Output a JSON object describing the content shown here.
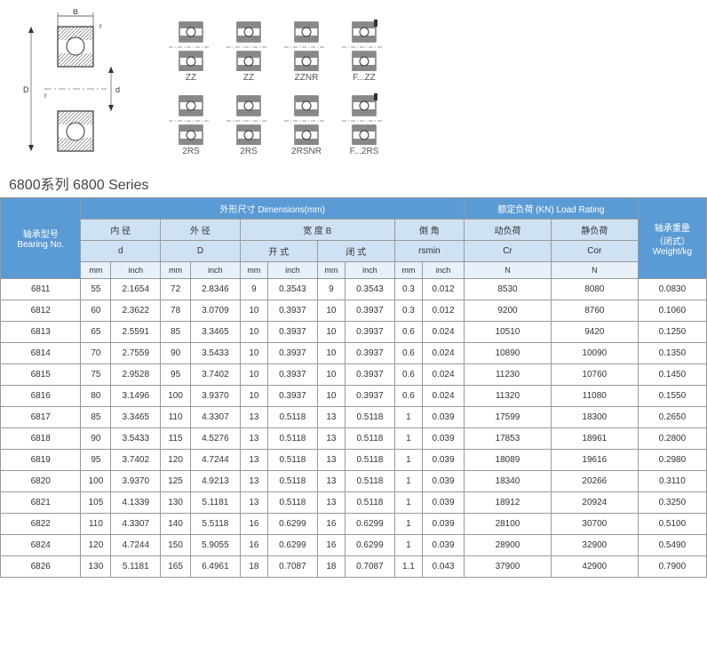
{
  "title": "6800系列 6800 Series",
  "diagram_labels": {
    "B": "B",
    "r": "r",
    "r2": "r",
    "D": "D",
    "d": "d"
  },
  "variants": [
    "ZZ",
    "ZZ",
    "ZZNR",
    "F...ZZ",
    "2RS",
    "2RS",
    "2RSNR",
    "F...2RS"
  ],
  "headers": {
    "bearing_no_cn": "轴承型号",
    "bearing_no_en": "Bearing No.",
    "dimensions_cn": "外形尺寸",
    "dimensions_en": "Dimensions(mm)",
    "inner_cn": "内 径",
    "outer_cn": "外 径",
    "width_cn": "宽 度 B",
    "chamfer_cn": "倒 角",
    "d": "d",
    "D_col": "D",
    "open_cn": "开 式",
    "closed_cn": "闭 式",
    "rsmin": "rsmin",
    "load_cn": "额定负荷 (KN)",
    "load_en": "Load Rating",
    "dynamic_cn": "动负荷",
    "static_cn": "静负荷",
    "Cr": "Cr",
    "Cor": "Cor",
    "N": "N",
    "weight_cn": "轴承重量",
    "weight_cn2": "（闭式）",
    "weight_en": "Weight/kg",
    "mm": "mm",
    "inch": "inch"
  },
  "colors": {
    "header_bg": "#5b9bd5",
    "sub_bg": "#cfe2f3",
    "sub2_bg": "#e8f0fa",
    "border": "#999"
  },
  "rows": [
    {
      "no": "6811",
      "d_mm": "55",
      "d_in": "2.1654",
      "D_mm": "72",
      "D_in": "2.8346",
      "bo_mm": "9",
      "bo_in": "0.3543",
      "bc_mm": "9",
      "bc_in": "0.3543",
      "r_mm": "0.3",
      "r_in": "0.012",
      "cr": "8530",
      "cor": "8080",
      "w": "0.0830"
    },
    {
      "no": "6812",
      "d_mm": "60",
      "d_in": "2.3622",
      "D_mm": "78",
      "D_in": "3.0709",
      "bo_mm": "10",
      "bo_in": "0.3937",
      "bc_mm": "10",
      "bc_in": "0.3937",
      "r_mm": "0.3",
      "r_in": "0.012",
      "cr": "9200",
      "cor": "8760",
      "w": "0.1060"
    },
    {
      "no": "6813",
      "d_mm": "65",
      "d_in": "2.5591",
      "D_mm": "85",
      "D_in": "3.3465",
      "bo_mm": "10",
      "bo_in": "0.3937",
      "bc_mm": "10",
      "bc_in": "0.3937",
      "r_mm": "0.6",
      "r_in": "0.024",
      "cr": "10510",
      "cor": "9420",
      "w": "0.1250"
    },
    {
      "no": "6814",
      "d_mm": "70",
      "d_in": "2.7559",
      "D_mm": "90",
      "D_in": "3.5433",
      "bo_mm": "10",
      "bo_in": "0.3937",
      "bc_mm": "10",
      "bc_in": "0.3937",
      "r_mm": "0.6",
      "r_in": "0.024",
      "cr": "10890",
      "cor": "10090",
      "w": "0.1350"
    },
    {
      "no": "6815",
      "d_mm": "75",
      "d_in": "2.9528",
      "D_mm": "95",
      "D_in": "3.7402",
      "bo_mm": "10",
      "bo_in": "0.3937",
      "bc_mm": "10",
      "bc_in": "0.3937",
      "r_mm": "0.6",
      "r_in": "0.024",
      "cr": "11230",
      "cor": "10760",
      "w": "0.1450"
    },
    {
      "no": "6816",
      "d_mm": "80",
      "d_in": "3.1496",
      "D_mm": "100",
      "D_in": "3.9370",
      "bo_mm": "10",
      "bo_in": "0.3937",
      "bc_mm": "10",
      "bc_in": "0.3937",
      "r_mm": "0.6",
      "r_in": "0.024",
      "cr": "11320",
      "cor": "11080",
      "w": "0.1550"
    },
    {
      "no": "6817",
      "d_mm": "85",
      "d_in": "3.3465",
      "D_mm": "110",
      "D_in": "4.3307",
      "bo_mm": "13",
      "bo_in": "0.5118",
      "bc_mm": "13",
      "bc_in": "0.5118",
      "r_mm": "1",
      "r_in": "0.039",
      "cr": "17599",
      "cor": "18300",
      "w": "0.2650"
    },
    {
      "no": "6818",
      "d_mm": "90",
      "d_in": "3.5433",
      "D_mm": "115",
      "D_in": "4.5276",
      "bo_mm": "13",
      "bo_in": "0.5118",
      "bc_mm": "13",
      "bc_in": "0.5118",
      "r_mm": "1",
      "r_in": "0.039",
      "cr": "17853",
      "cor": "18961",
      "w": "0.2800"
    },
    {
      "no": "6819",
      "d_mm": "95",
      "d_in": "3.7402",
      "D_mm": "120",
      "D_in": "4.7244",
      "bo_mm": "13",
      "bo_in": "0.5118",
      "bc_mm": "13",
      "bc_in": "0.5118",
      "r_mm": "1",
      "r_in": "0.039",
      "cr": "18089",
      "cor": "19616",
      "w": "0.2980"
    },
    {
      "no": "6820",
      "d_mm": "100",
      "d_in": "3.9370",
      "D_mm": "125",
      "D_in": "4.9213",
      "bo_mm": "13",
      "bo_in": "0.5118",
      "bc_mm": "13",
      "bc_in": "0.5118",
      "r_mm": "1",
      "r_in": "0.039",
      "cr": "18340",
      "cor": "20266",
      "w": "0.3110"
    },
    {
      "no": "6821",
      "d_mm": "105",
      "d_in": "4.1339",
      "D_mm": "130",
      "D_in": "5.1181",
      "bo_mm": "13",
      "bo_in": "0.5118",
      "bc_mm": "13",
      "bc_in": "0.5118",
      "r_mm": "1",
      "r_in": "0.039",
      "cr": "18912",
      "cor": "20924",
      "w": "0.3250"
    },
    {
      "no": "6822",
      "d_mm": "110",
      "d_in": "4.3307",
      "D_mm": "140",
      "D_in": "5.5118",
      "bo_mm": "16",
      "bo_in": "0.6299",
      "bc_mm": "16",
      "bc_in": "0.6299",
      "r_mm": "1",
      "r_in": "0.039",
      "cr": "28100",
      "cor": "30700",
      "w": "0.5100"
    },
    {
      "no": "6824",
      "d_mm": "120",
      "d_in": "4.7244",
      "D_mm": "150",
      "D_in": "5.9055",
      "bo_mm": "16",
      "bo_in": "0.6299",
      "bc_mm": "16",
      "bc_in": "0.6299",
      "r_mm": "1",
      "r_in": "0.039",
      "cr": "28900",
      "cor": "32900",
      "w": "0.5490"
    },
    {
      "no": "6826",
      "d_mm": "130",
      "d_in": "5.1181",
      "D_mm": "165",
      "D_in": "6.4961",
      "bo_mm": "18",
      "bo_in": "0.7087",
      "bc_mm": "18",
      "bc_in": "0.7087",
      "r_mm": "1.1",
      "r_in": "0.043",
      "cr": "37900",
      "cor": "42900",
      "w": "0.7900"
    }
  ]
}
